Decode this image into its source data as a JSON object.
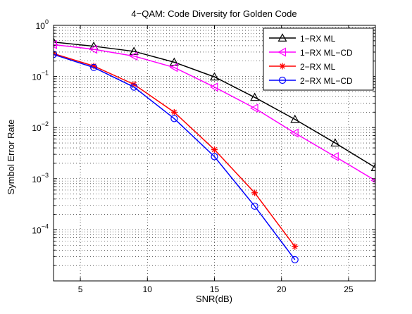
{
  "chart_data": {
    "type": "line",
    "title": "4−QAM: Code Diversity for Golden Code",
    "xlabel": "SNR(dB)",
    "ylabel": "Symbol Error Rate",
    "xlim": [
      3,
      27
    ],
    "ylim": [
      1e-05,
      1
    ],
    "yscale": "log",
    "grid": true,
    "legend_position": "top-right",
    "x_ticks": [
      "5",
      "10",
      "15",
      "20",
      "25"
    ],
    "y_ticks": [
      {
        "base": "10",
        "exp": "0"
      },
      {
        "base": "10",
        "exp": "−1"
      },
      {
        "base": "10",
        "exp": "−2"
      },
      {
        "base": "10",
        "exp": "−3"
      },
      {
        "base": "10",
        "exp": "−4"
      }
    ],
    "series": [
      {
        "name": "1−RX ML",
        "color": "#000000",
        "marker": "triangle-up",
        "x": [
          3,
          6,
          9,
          12,
          15,
          18,
          21,
          24,
          27
        ],
        "y": [
          0.47,
          0.39,
          0.31,
          0.19,
          0.098,
          0.039,
          0.0145,
          0.005,
          0.00165
        ]
      },
      {
        "name": "1−RX ML−CD",
        "color": "#ff00ff",
        "marker": "triangle-left",
        "x": [
          3,
          6,
          9,
          12,
          15,
          18,
          21,
          24,
          27
        ],
        "y": [
          0.42,
          0.34,
          0.25,
          0.15,
          0.062,
          0.024,
          0.0078,
          0.0027,
          0.00092
        ]
      },
      {
        "name": "2−RX ML",
        "color": "#ff0000",
        "marker": "asterisk",
        "x": [
          3,
          6,
          9,
          12,
          15,
          18,
          21
        ],
        "y": [
          0.28,
          0.16,
          0.07,
          0.02,
          0.0037,
          0.00053,
          4.7e-05
        ]
      },
      {
        "name": "2−RX ML−CD",
        "color": "#0000ff",
        "marker": "circle",
        "x": [
          3,
          6,
          9,
          12,
          15,
          18,
          21
        ],
        "y": [
          0.27,
          0.15,
          0.062,
          0.015,
          0.0027,
          0.00029,
          2.6e-05
        ]
      }
    ]
  }
}
